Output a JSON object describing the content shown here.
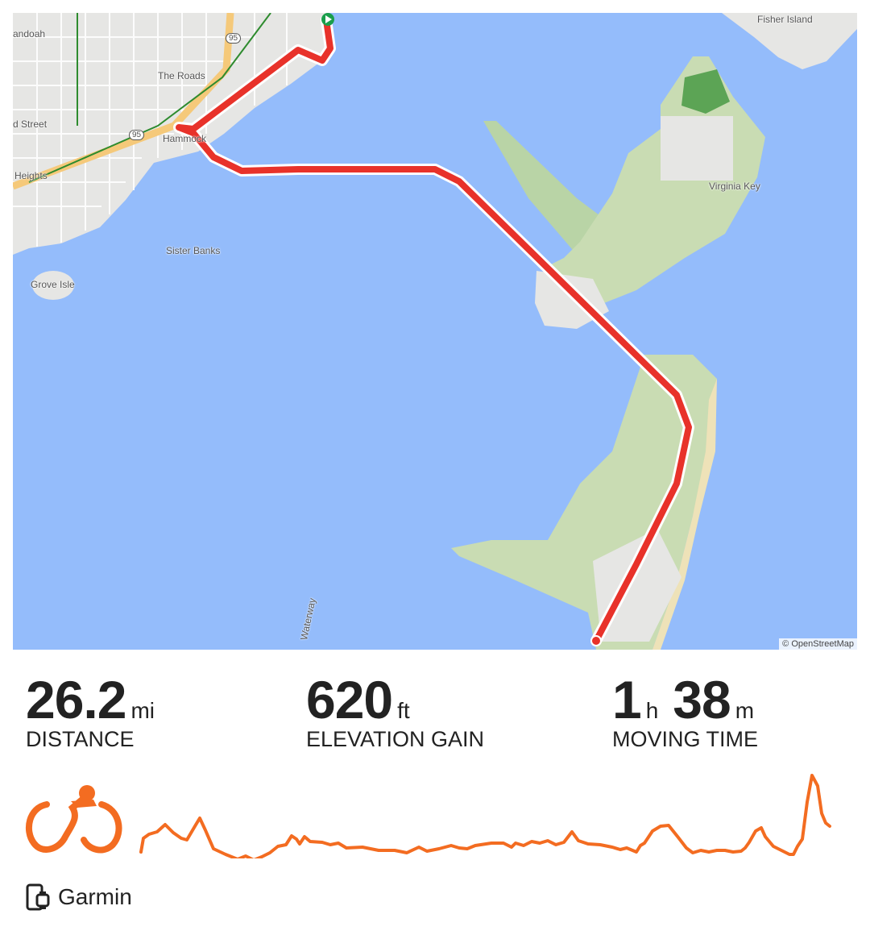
{
  "map": {
    "labels": [
      "Fisher Island",
      "andoah",
      "The Roads",
      "d Street",
      "Heights",
      "Hammock",
      "Sister Banks",
      "Grove Isle",
      "Virginia Key",
      "Waterway",
      "95"
    ],
    "attribution": "© OpenStreetMap",
    "route_color": "#e8322a",
    "water_color": "#94bcfb"
  },
  "stats": [
    {
      "value": "26.2",
      "unit": "mi",
      "label": "DISTANCE"
    },
    {
      "value": "620",
      "unit": "ft",
      "label": "ELEVATION GAIN"
    },
    {
      "hours": "1",
      "hours_unit": "h",
      "minutes": "38",
      "minutes_unit": "m",
      "label": "MOVING TIME"
    }
  ],
  "activity": {
    "type_icon": "cycling-icon",
    "accent_color": "#f36c21"
  },
  "device": {
    "icon": "device-watch-icon",
    "name": "Garmin"
  }
}
